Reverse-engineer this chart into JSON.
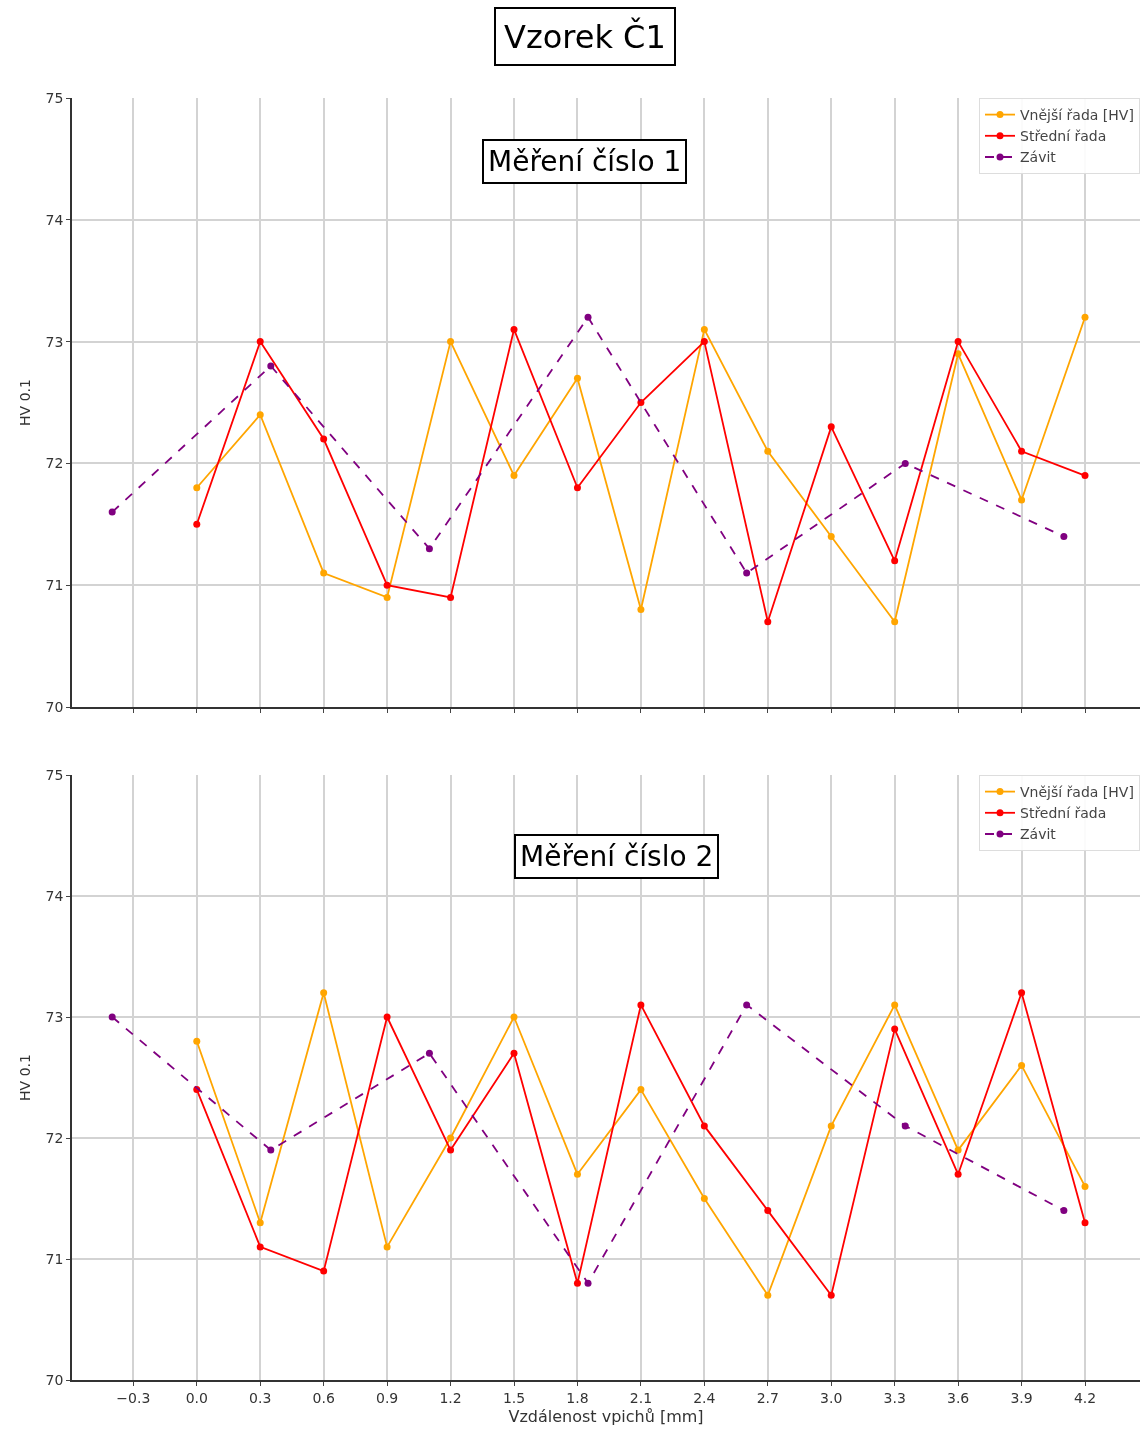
{
  "chart_data": [
    {
      "type": "line",
      "title": "Vzorek Č1",
      "subtitle": "Měření číslo 1",
      "ylabel": "HV 0.1",
      "x": [
        0.0,
        0.3,
        0.6,
        0.9,
        1.2,
        1.5,
        1.8,
        2.1,
        2.4,
        2.7,
        3.0,
        3.3,
        3.6,
        3.9,
        4.2
      ],
      "series": [
        {
          "name": "Vnější řada [HV]",
          "color": "#ffa500",
          "values": [
            71.8,
            72.4,
            71.1,
            70.9,
            73.0,
            71.9,
            72.7,
            70.8,
            73.1,
            72.1,
            71.4,
            70.7,
            72.9,
            71.7,
            73.2
          ]
        },
        {
          "name": "Střední řada",
          "color": "#ff0000",
          "values": [
            71.5,
            73.0,
            72.2,
            71.0,
            70.9,
            73.1,
            71.8,
            72.5,
            73.0,
            70.7,
            72.3,
            71.2,
            73.0,
            72.1,
            71.9
          ]
        },
        {
          "name": "Závit",
          "color": "#800080",
          "line_style": "dashed",
          "x": [
            -0.4,
            0.35,
            1.1,
            1.85,
            2.6,
            3.35,
            4.1
          ],
          "values": [
            71.6,
            72.8,
            71.3,
            73.2,
            71.1,
            72.0,
            71.4
          ]
        }
      ],
      "xlim": [
        -0.59,
        4.46
      ],
      "xticks": [
        {
          "value": -0.3,
          "label": null
        },
        {
          "value": 0,
          "label": null
        },
        {
          "value": 0.3,
          "label": null
        },
        {
          "value": 0.6,
          "label": null
        },
        {
          "value": 0.9,
          "label": null
        },
        {
          "value": 1.2,
          "label": null
        },
        {
          "value": 1.5,
          "label": null
        },
        {
          "value": 1.8,
          "label": null
        },
        {
          "value": 2.1,
          "label": null
        },
        {
          "value": 2.4,
          "label": null
        },
        {
          "value": 2.7,
          "label": null
        },
        {
          "value": 3.0,
          "label": null
        },
        {
          "value": 3.3,
          "label": null
        },
        {
          "value": 3.6,
          "label": null
        },
        {
          "value": 3.9,
          "label": null
        },
        {
          "value": 4.2,
          "label": null
        }
      ],
      "ylim": [
        70,
        75
      ],
      "yticks": [
        70,
        71,
        72,
        73,
        74,
        75
      ],
      "tick_labels": "y",
      "grid": true,
      "legend": "top right",
      "marker": "circle",
      "line_style": "solid"
    },
    {
      "type": "line",
      "title": "Měření číslo 2",
      "xlabel": "Vzdálenost vpichů [mm]",
      "ylabel": "HV 0.1",
      "x": [
        0.0,
        0.3,
        0.6,
        0.9,
        1.2,
        1.5,
        1.8,
        2.1,
        2.4,
        2.7,
        3.0,
        3.3,
        3.6,
        3.9,
        4.2
      ],
      "series": [
        {
          "name": "Vnější řada [HV]",
          "color": "#ffa500",
          "values": [
            72.8,
            71.3,
            73.2,
            71.1,
            72.0,
            73.0,
            71.7,
            72.4,
            71.5,
            70.7,
            72.1,
            73.1,
            71.9,
            72.6,
            71.6
          ]
        },
        {
          "name": "Střední řada",
          "color": "#ff0000",
          "values": [
            72.4,
            71.1,
            70.9,
            73.0,
            71.9,
            72.7,
            70.8,
            73.1,
            72.1,
            71.4,
            70.7,
            72.9,
            71.7,
            73.2,
            71.3
          ]
        },
        {
          "name": "Závit",
          "color": "#800080",
          "line_style": "dashed",
          "x": [
            -0.4,
            0.35,
            1.1,
            1.85,
            2.6,
            3.35,
            4.1
          ],
          "values": [
            73.0,
            71.9,
            72.7,
            70.8,
            73.1,
            72.1,
            71.4
          ]
        }
      ],
      "xlim": [
        -0.59,
        4.46
      ],
      "xticks": [
        {
          "value": -0.3,
          "label": "−0.3"
        },
        {
          "value": 0,
          "label": "0.0"
        },
        {
          "value": 0.3,
          "label": "0.3"
        },
        {
          "value": 0.6,
          "label": "0.6"
        },
        {
          "value": 0.9,
          "label": "0.9"
        },
        {
          "value": 1.2,
          "label": "1.2"
        },
        {
          "value": 1.5,
          "label": "1.5"
        },
        {
          "value": 1.8,
          "label": "1.8"
        },
        {
          "value": 2.1,
          "label": "2.1"
        },
        {
          "value": 2.4,
          "label": "2.4"
        },
        {
          "value": 2.7,
          "label": "2.7"
        },
        {
          "value": 3.0,
          "label": "3.0"
        },
        {
          "value": 3.3,
          "label": "3.3"
        },
        {
          "value": 3.6,
          "label": "3.6"
        },
        {
          "value": 3.9,
          "label": "3.9"
        },
        {
          "value": 4.2,
          "label": "4.2"
        }
      ],
      "ylim": [
        70,
        75
      ],
      "yticks": [
        70,
        71,
        72,
        73,
        74,
        75
      ],
      "grid": true,
      "legend": "top right",
      "marker": "circle",
      "line_style": "solid"
    }
  ]
}
